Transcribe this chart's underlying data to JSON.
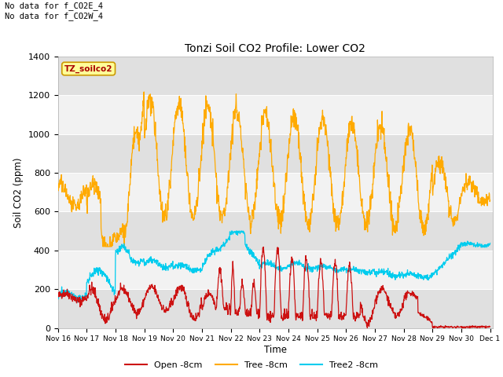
{
  "title": "Tonzi Soil CO2 Profile: Lower CO2",
  "xlabel": "Time",
  "ylabel": "Soil CO2 (ppm)",
  "ylim": [
    0,
    1400
  ],
  "yticks": [
    0,
    200,
    400,
    600,
    800,
    1000,
    1200,
    1400
  ],
  "annotation_text": "No data for f_CO2E_4\nNo data for f_CO2W_4",
  "watermark_text": "TZ_soilco2",
  "legend_labels": [
    "Open -8cm",
    "Tree -8cm",
    "Tree2 -8cm"
  ],
  "legend_colors": [
    "#cc1111",
    "#ffaa00",
    "#00ccee"
  ],
  "open_color": "#cc1111",
  "tree_color": "#ffaa00",
  "tree2_color": "#00ccee",
  "bg_color": "#ffffff",
  "plot_bg_light": "#f2f2f2",
  "plot_bg_dark": "#e0e0e0",
  "x_start": 16,
  "x_end": 31.1,
  "xtick_labels": [
    "Nov 16",
    "Nov 17",
    "Nov 18",
    "Nov 19",
    "Nov 20",
    "Nov 21",
    "Nov 22",
    "Nov 23",
    "Nov 24",
    "Nov 25",
    "Nov 26",
    "Nov 27",
    "Nov 28",
    "Nov 29",
    "Nov 30",
    "Dec 1"
  ],
  "xtick_positions": [
    16,
    17,
    18,
    19,
    20,
    21,
    22,
    23,
    24,
    25,
    26,
    27,
    28,
    29,
    30,
    31
  ]
}
